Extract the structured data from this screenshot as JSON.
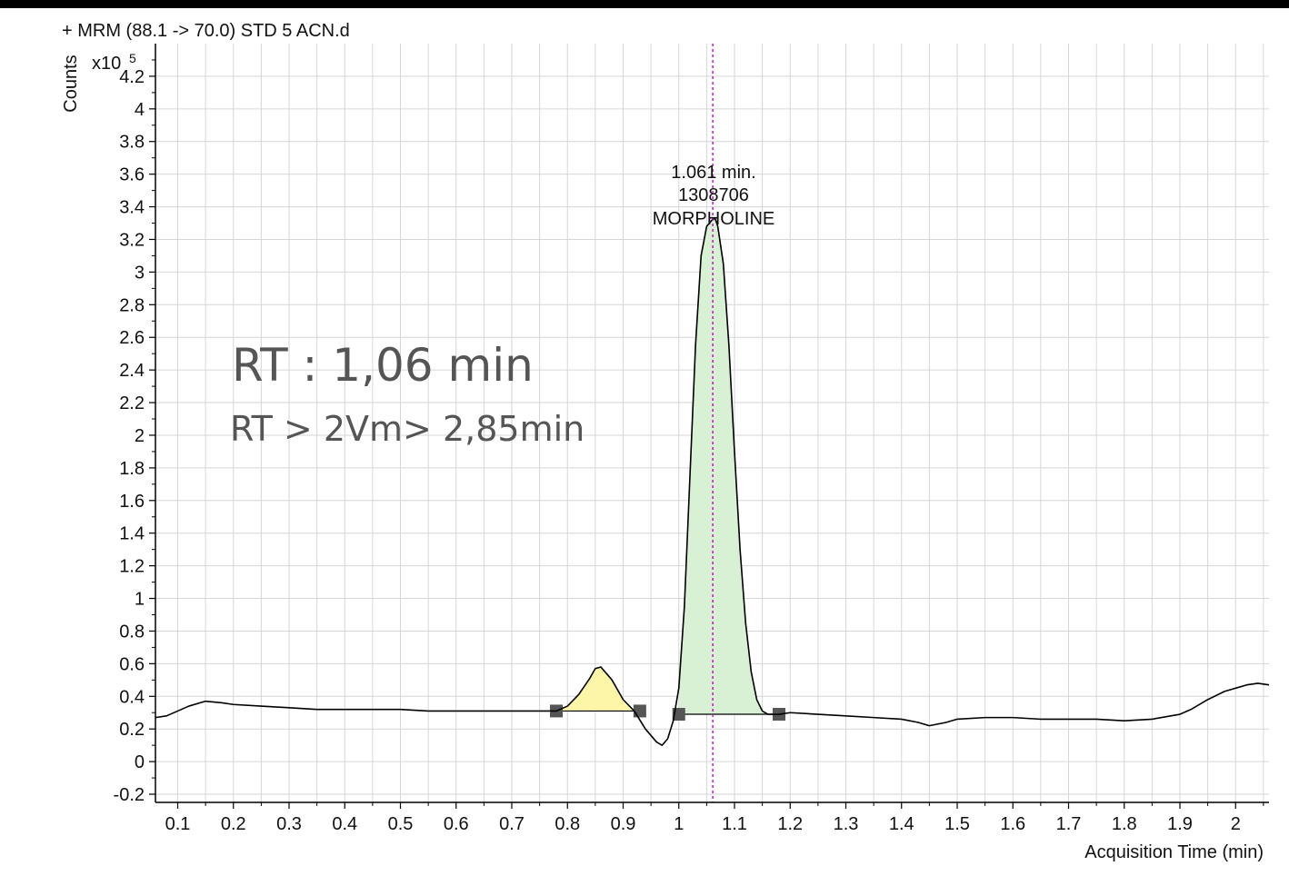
{
  "chart_data": {
    "type": "line",
    "title": "+ MRM (88.1 -> 70.0) STD  5 ACN.d",
    "ylabel": "Counts",
    "y_multiplier": "x10",
    "y_exponent": "5",
    "xlabel": "Acquisition Time (min)",
    "xlim": [
      0.06,
      2.06
    ],
    "ylim": [
      -0.25,
      4.4
    ],
    "x_ticks": [
      "0.1",
      "0.2",
      "0.3",
      "0.4",
      "0.5",
      "0.6",
      "0.7",
      "0.8",
      "0.9",
      "1",
      "1.1",
      "1.2",
      "1.3",
      "1.4",
      "1.5",
      "1.6",
      "1.7",
      "1.8",
      "1.9",
      "2"
    ],
    "y_ticks": [
      "-0.2",
      "0",
      "0.2",
      "0.4",
      "0.6",
      "0.8",
      "1",
      "1.2",
      "1.4",
      "1.6",
      "1.8",
      "2",
      "2.2",
      "2.4",
      "2.6",
      "2.8",
      "3",
      "3.2",
      "3.4",
      "3.6",
      "3.8",
      "4",
      "4.2"
    ],
    "grid": true,
    "series": [
      {
        "line_color": "#000000",
        "x": [
          0.06,
          0.08,
          0.1,
          0.12,
          0.15,
          0.18,
          0.2,
          0.25,
          0.3,
          0.35,
          0.4,
          0.45,
          0.5,
          0.55,
          0.6,
          0.65,
          0.7,
          0.75,
          0.78,
          0.8,
          0.82,
          0.84,
          0.85,
          0.86,
          0.88,
          0.9,
          0.92,
          0.94,
          0.96,
          0.97,
          0.98,
          0.99,
          1.0,
          1.01,
          1.02,
          1.03,
          1.04,
          1.05,
          1.06,
          1.065,
          1.07,
          1.08,
          1.09,
          1.1,
          1.11,
          1.12,
          1.13,
          1.14,
          1.15,
          1.16,
          1.18,
          1.2,
          1.25,
          1.3,
          1.35,
          1.4,
          1.43,
          1.45,
          1.48,
          1.5,
          1.55,
          1.6,
          1.65,
          1.7,
          1.75,
          1.8,
          1.85,
          1.9,
          1.92,
          1.95,
          1.98,
          2.0,
          2.02,
          2.04,
          2.06
        ],
        "y": [
          0.27,
          0.28,
          0.31,
          0.34,
          0.37,
          0.36,
          0.35,
          0.34,
          0.33,
          0.32,
          0.32,
          0.32,
          0.32,
          0.31,
          0.31,
          0.31,
          0.31,
          0.31,
          0.31,
          0.34,
          0.41,
          0.51,
          0.57,
          0.58,
          0.5,
          0.38,
          0.31,
          0.2,
          0.12,
          0.1,
          0.14,
          0.25,
          0.45,
          0.95,
          1.75,
          2.55,
          3.1,
          3.28,
          3.32,
          3.33,
          3.28,
          3.05,
          2.55,
          1.9,
          1.3,
          0.85,
          0.55,
          0.38,
          0.31,
          0.29,
          0.29,
          0.3,
          0.29,
          0.28,
          0.27,
          0.26,
          0.24,
          0.22,
          0.24,
          0.26,
          0.27,
          0.27,
          0.26,
          0.26,
          0.26,
          0.25,
          0.26,
          0.29,
          0.32,
          0.38,
          0.43,
          0.45,
          0.47,
          0.48,
          0.47
        ]
      }
    ],
    "integrated_peaks": [
      {
        "x_start": 0.78,
        "x_end": 0.93,
        "baseline": 0.31,
        "fill_color": "#fdf6a8"
      },
      {
        "x_start": 1.0,
        "x_end": 1.18,
        "baseline": 0.29,
        "fill_color": "#d8f0d4"
      }
    ],
    "rt_marker": {
      "x": 1.061,
      "color": "#cc00cc"
    },
    "peak_annotation": {
      "x": 1.061,
      "y": 3.33,
      "lines": [
        "1.061 min.",
        "1308706",
        "MORPHOLINE"
      ]
    },
    "overlay_text": {
      "line1": "RT : 1,06 min",
      "line2": "RT > 2Vm> 2,85min"
    }
  }
}
